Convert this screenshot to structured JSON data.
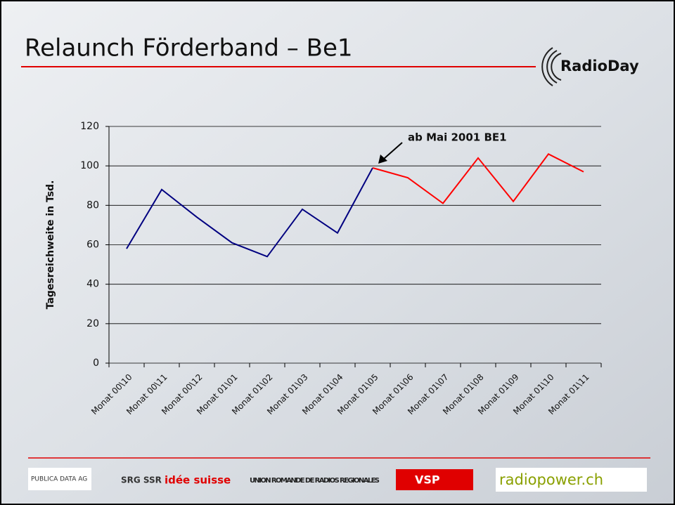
{
  "slide": {
    "title": "Relaunch Förderband – Be1",
    "logo": "RadioDay",
    "footer_logos": [
      "PUBLICA DATA AG",
      "SRG SSR",
      "idée suisse",
      "UNION ROMANDE DE RADIOS REGIONALES",
      "VSP",
      "radiopower.ch"
    ]
  },
  "chart_data": {
    "type": "line",
    "y_label": "Tagesreichweite in Tsd.",
    "annotation": "ab Mai 2001 BE1",
    "categories": [
      "Monat 00\\10",
      "Monat 00\\11",
      "Monat 00\\12",
      "Monat 01\\01",
      "Monat 01\\02",
      "Monat 01\\03",
      "Monat 01\\04",
      "Monat 01\\05",
      "Monat 01\\06",
      "Monat 01\\07",
      "Monat 01\\08",
      "Monat 01\\09",
      "Monat 01\\10",
      "Monat 01\\11"
    ],
    "series": [
      {
        "color": "#000080",
        "values": [
          58,
          88,
          74,
          61,
          54,
          78,
          66,
          99,
          null,
          null,
          null,
          null,
          null,
          null
        ]
      },
      {
        "color": "#ff0000",
        "values": [
          null,
          null,
          null,
          null,
          null,
          null,
          null,
          99,
          94,
          81,
          104,
          82,
          106,
          97
        ]
      }
    ],
    "ylim": [
      0,
      120
    ],
    "yticks": [
      0,
      20,
      40,
      60,
      80,
      100,
      120
    ],
    "grid": true
  }
}
